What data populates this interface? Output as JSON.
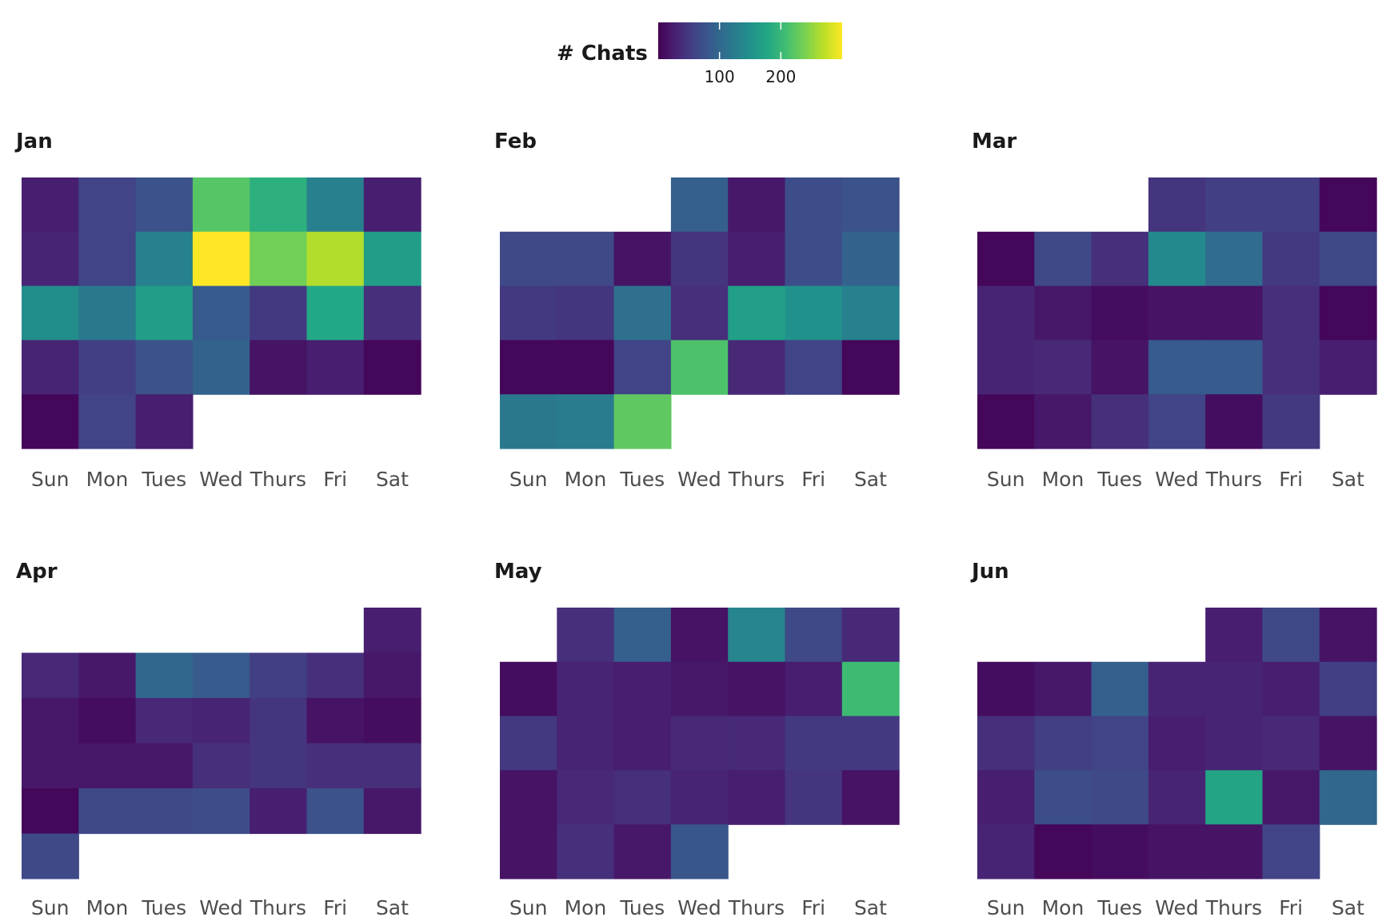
{
  "chart_data": {
    "type": "heatmap",
    "layout": "calendar",
    "legend": {
      "title": "# Chats",
      "min": 0,
      "max": 300,
      "ticks": [
        100,
        200
      ],
      "placement": "top"
    },
    "days": [
      "Sun",
      "Mon",
      "Tues",
      "Wed",
      "Thurs",
      "Fri",
      "Sat"
    ],
    "panels": [
      {
        "month": "Jan",
        "weeks": [
          [
            25,
            60,
            75,
            220,
            190,
            130,
            25
          ],
          [
            30,
            60,
            130,
            300,
            235,
            265,
            165
          ],
          [
            145,
            120,
            165,
            85,
            50,
            180,
            40
          ],
          [
            30,
            55,
            75,
            95,
            15,
            25,
            5
          ],
          [
            5,
            60,
            25,
            null,
            null,
            null,
            null
          ]
        ]
      },
      {
        "month": "Feb",
        "weeks": [
          [
            null,
            null,
            null,
            90,
            20,
            70,
            75
          ],
          [
            65,
            65,
            15,
            45,
            25,
            70,
            95
          ],
          [
            50,
            45,
            110,
            40,
            170,
            150,
            130
          ],
          [
            5,
            5,
            60,
            215,
            35,
            60,
            5
          ],
          [
            120,
            125,
            225,
            null,
            null,
            null,
            null
          ]
        ]
      },
      {
        "month": "Mar",
        "weeks": [
          [
            null,
            null,
            null,
            45,
            55,
            55,
            5
          ],
          [
            5,
            65,
            40,
            140,
            105,
            50,
            65
          ],
          [
            30,
            20,
            10,
            15,
            15,
            40,
            5
          ],
          [
            30,
            35,
            15,
            85,
            85,
            40,
            25
          ],
          [
            5,
            20,
            40,
            60,
            10,
            50,
            null
          ]
        ]
      },
      {
        "month": "Apr",
        "weeks": [
          [
            null,
            null,
            null,
            null,
            null,
            null,
            25
          ],
          [
            35,
            20,
            100,
            85,
            55,
            40,
            20
          ],
          [
            20,
            10,
            35,
            30,
            45,
            15,
            10
          ],
          [
            20,
            20,
            20,
            40,
            45,
            40,
            40
          ],
          [
            5,
            65,
            65,
            70,
            25,
            75,
            20
          ],
          [
            65,
            null,
            null,
            null,
            null,
            null,
            null
          ]
        ]
      },
      {
        "month": "May",
        "weeks": [
          [
            null,
            40,
            90,
            15,
            135,
            65,
            35
          ],
          [
            10,
            30,
            25,
            20,
            15,
            25,
            205
          ],
          [
            50,
            30,
            25,
            35,
            35,
            50,
            50
          ],
          [
            15,
            35,
            40,
            30,
            25,
            45,
            15
          ],
          [
            15,
            40,
            20,
            80,
            null,
            null,
            null
          ]
        ]
      },
      {
        "month": "Jun",
        "weeks": [
          [
            null,
            null,
            null,
            null,
            25,
            65,
            15
          ],
          [
            10,
            20,
            90,
            30,
            30,
            25,
            55
          ],
          [
            40,
            55,
            60,
            25,
            30,
            35,
            15
          ],
          [
            25,
            70,
            65,
            30,
            175,
            20,
            100
          ],
          [
            30,
            5,
            10,
            15,
            15,
            60,
            null
          ]
        ]
      }
    ]
  }
}
